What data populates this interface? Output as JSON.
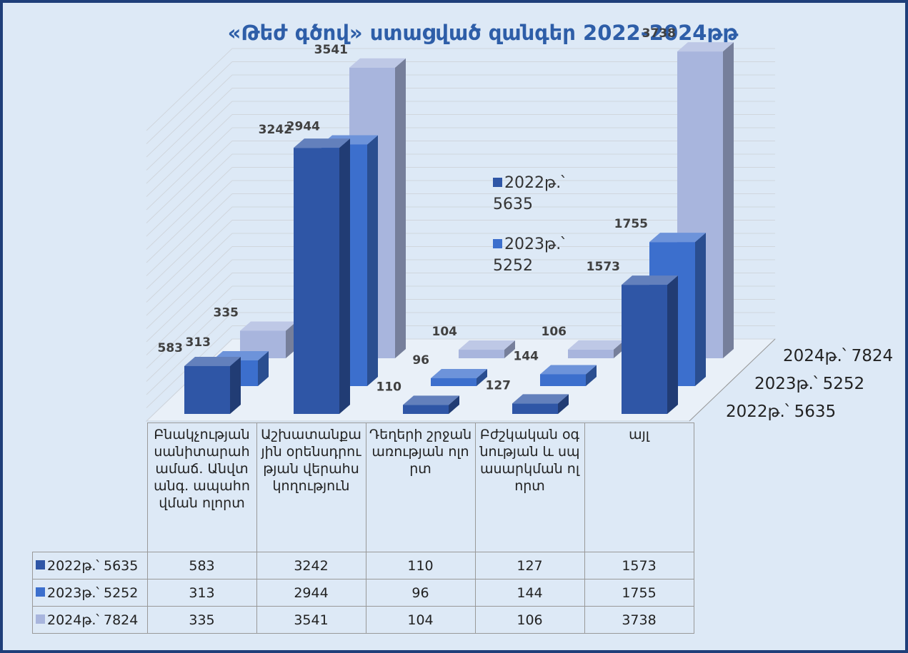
{
  "chart_data": {
    "type": "bar",
    "title": "«Թեժ գծով» ստացված զանգեր 2022-2024թթ",
    "categories": [
      "Բնակչության սանիտարահամաճ. Անվտանգ. ապահովման ոլորտ",
      "Աշխատանքային օրենսդրության վերահսկողություն",
      "Դեղերի շրջանառության ոլորտ",
      "Բժշկական օգնության և սպասարկման ոլորտ",
      "այլ"
    ],
    "series": [
      {
        "name": "2022թ.՝ 5635",
        "color": "#2f56a6",
        "values": [
          583,
          3242,
          110,
          127,
          1573
        ]
      },
      {
        "name": "2023թ.՝ 5252",
        "color": "#3c6fcd",
        "values": [
          313,
          2944,
          96,
          144,
          1755
        ]
      },
      {
        "name": "2024թ.՝ 7824",
        "color": "#a8b5dd",
        "values": [
          335,
          3541,
          104,
          106,
          3738
        ]
      }
    ],
    "ylim": [
      0,
      4000
    ],
    "legend_series": [
      0,
      1
    ]
  }
}
